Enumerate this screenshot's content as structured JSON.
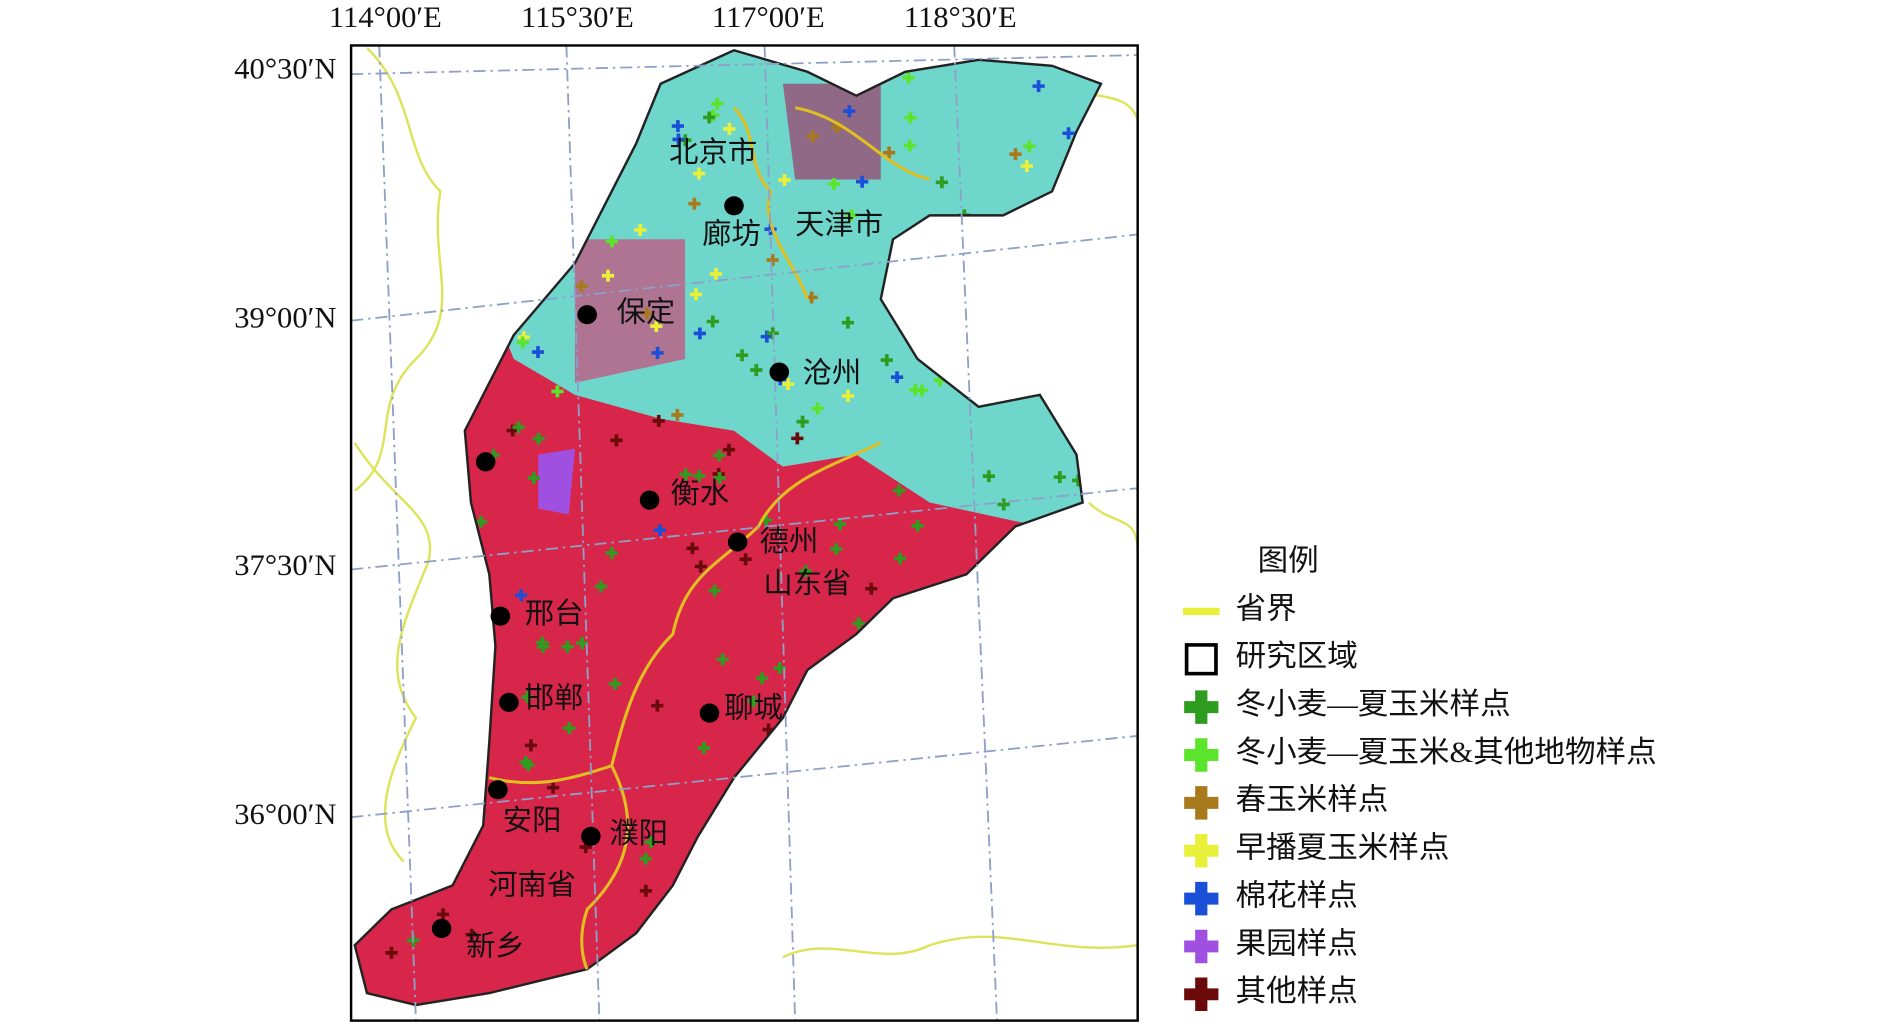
{
  "lon_labels": [
    "114°00′E",
    "115°30′E",
    "117°00′E",
    "118°30′E"
  ],
  "lat_labels": [
    "40°30′N",
    "39°00′N",
    "37°30′N",
    "36°00′N"
  ],
  "cities": [
    "北京市",
    "廊坊",
    "天津市",
    "保定",
    "沧州",
    "衡水",
    "德州",
    "山东省",
    "邢台",
    "邯郸",
    "聊城",
    "安阳",
    "濮阳",
    "河南省",
    "新乡"
  ],
  "legend": {
    "title": "图例",
    "items": [
      "省界",
      "研究区域",
      "冬小麦—夏玉米样点",
      "冬小麦—夏玉米&其他地物样点",
      "春玉米样点",
      "早播夏玉米样点",
      "棉花样点",
      "果园样点",
      "其他样点"
    ]
  }
}
